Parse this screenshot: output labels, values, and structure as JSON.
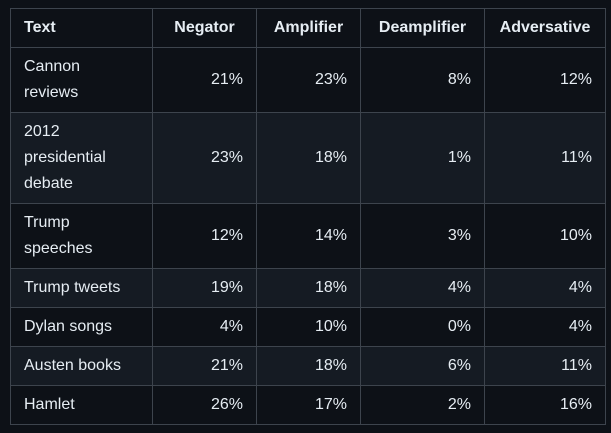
{
  "table": {
    "headers": [
      "Text",
      "Negator",
      "Amplifier",
      "Deamplifier",
      "Adversative"
    ],
    "rows": [
      {
        "text": [
          "Cannon",
          "reviews"
        ],
        "negator": "21%",
        "amplifier": "23%",
        "deamplifier": "8%",
        "adversative": "12%"
      },
      {
        "text": [
          "2012",
          "presidential",
          "debate"
        ],
        "negator": "23%",
        "amplifier": "18%",
        "deamplifier": "1%",
        "adversative": "11%"
      },
      {
        "text": [
          "Trump",
          "speeches"
        ],
        "negator": "12%",
        "amplifier": "14%",
        "deamplifier": "3%",
        "adversative": "10%"
      },
      {
        "text": [
          "Trump tweets"
        ],
        "negator": "19%",
        "amplifier": "18%",
        "deamplifier": "4%",
        "adversative": "4%"
      },
      {
        "text": [
          "Dylan songs"
        ],
        "negator": "4%",
        "amplifier": "10%",
        "deamplifier": "0%",
        "adversative": "4%"
      },
      {
        "text": [
          "Austen books"
        ],
        "negator": "21%",
        "amplifier": "18%",
        "deamplifier": "6%",
        "adversative": "11%"
      },
      {
        "text": [
          "Hamlet"
        ],
        "negator": "26%",
        "amplifier": "17%",
        "deamplifier": "2%",
        "adversative": "16%"
      }
    ]
  },
  "colors": {
    "background": "#0d1117",
    "alt_row": "#151b23",
    "border": "#3d444d",
    "text": "#e6edf3"
  }
}
